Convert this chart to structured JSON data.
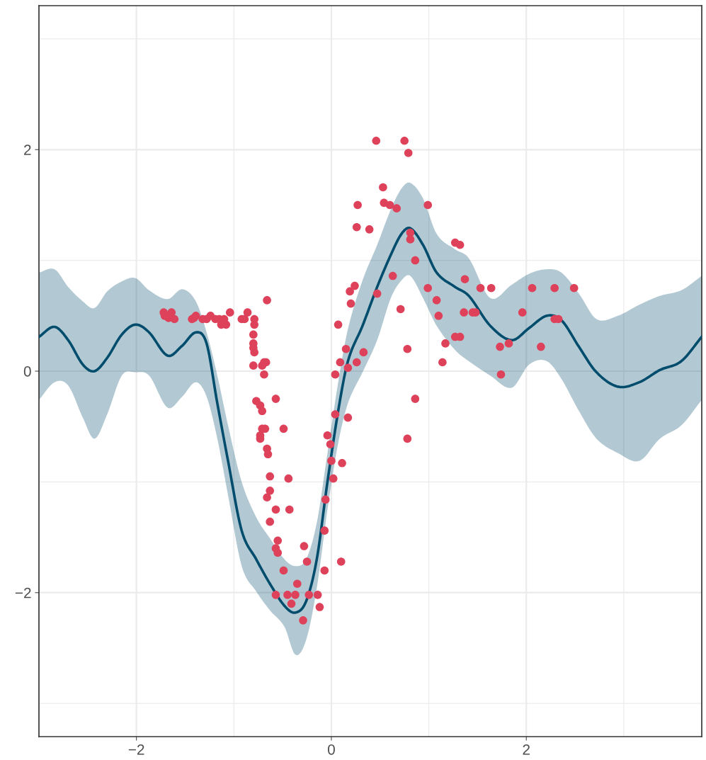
{
  "chart_data": {
    "type": "scatter",
    "xlim": [
      -3.0,
      3.8
    ],
    "ylim": [
      -3.3,
      3.3
    ],
    "xticks": [
      {
        "value": -2,
        "label": "−2"
      },
      0,
      2
    ],
    "yticks": [
      {
        "value": -2,
        "label": "−2"
      },
      0,
      2
    ],
    "grid": true,
    "series": [
      {
        "type": "line",
        "color": "#004c6d",
        "lower": [
          -0.26,
          -0.1,
          -0.13,
          -0.42,
          -0.61,
          -0.39,
          -0.04,
          -0.01,
          -0.04,
          -0.33,
          -0.23,
          -0.1,
          -0.23,
          -0.61,
          -1.12,
          -1.76,
          -1.99,
          -2.16,
          -2.31,
          -2.56,
          -2.43,
          -1.96,
          -1.25,
          -0.65,
          -0.29,
          -0.01,
          0.28,
          0.66,
          0.82,
          0.86,
          0.66,
          0.41,
          0.19,
          0.09,
          -0.04,
          -0.15,
          0.06,
          0.09,
          -0.07,
          -0.36,
          -0.61,
          -0.74,
          -0.81,
          -0.61,
          -0.49,
          -0.26
        ],
        "upper": [
          0.89,
          0.92,
          0.76,
          0.63,
          0.57,
          0.72,
          0.81,
          0.84,
          0.73,
          0.65,
          0.74,
          0.63,
          0.35,
          -0.04,
          -0.49,
          -1.0,
          -1.32,
          -1.51,
          -1.7,
          -1.76,
          -1.7,
          -1.37,
          -0.74,
          -0.1,
          0.38,
          0.82,
          1.14,
          1.46,
          1.65,
          1.7,
          1.56,
          1.24,
          1.1,
          1.02,
          0.66,
          0.78,
          0.88,
          0.92,
          0.89,
          0.7,
          0.47,
          0.5,
          0.6,
          0.68,
          0.73,
          0.86
        ],
        "x": [
          -3.0,
          -2.84,
          -2.7,
          -2.55,
          -2.43,
          -2.3,
          -2.15,
          -2.01,
          -1.87,
          -1.68,
          -1.53,
          -1.39,
          -1.28,
          -1.17,
          -1.06,
          -0.92,
          -0.77,
          -0.63,
          -0.48,
          -0.37,
          -0.26,
          -0.15,
          -0.04,
          0.07,
          0.17,
          0.32,
          0.47,
          0.61,
          0.72,
          0.81,
          0.94,
          1.08,
          1.27,
          1.41,
          1.63,
          1.85,
          2.03,
          2.21,
          2.36,
          2.54,
          2.72,
          2.94,
          3.16,
          3.37,
          3.59,
          3.8
        ],
        "values": [
          0.31,
          0.4,
          0.28,
          0.06,
          0.0,
          0.12,
          0.33,
          0.42,
          0.35,
          0.14,
          0.23,
          0.35,
          0.25,
          -0.29,
          -0.81,
          -1.44,
          -1.7,
          -1.92,
          -2.12,
          -2.18,
          -2.08,
          -1.7,
          -1.0,
          -0.36,
          0.09,
          0.41,
          0.76,
          1.05,
          1.24,
          1.29,
          1.14,
          0.89,
          0.76,
          0.68,
          0.41,
          0.28,
          0.39,
          0.5,
          0.46,
          0.22,
          -0.01,
          -0.14,
          -0.1,
          0.01,
          0.09,
          0.31
        ]
      },
      {
        "color": "#de425b",
        "marker": "circle",
        "x": [
          -1.72,
          -1.71,
          -1.67,
          -1.64,
          -1.61,
          -1.43,
          -1.41,
          -1.39,
          -1.32,
          -1.28,
          -1.24,
          -1.19,
          -1.15,
          -1.13,
          -1.1,
          -1.08,
          -1.04,
          -0.92,
          -0.89,
          -0.86,
          -0.79,
          -0.79,
          -0.8,
          -0.8,
          -0.8,
          -0.79,
          -0.8,
          -0.71,
          -0.69,
          -0.67,
          -0.66,
          -0.69,
          -0.77,
          -0.73,
          -0.71,
          -0.73,
          -0.73,
          -0.71,
          -0.68,
          -0.66,
          -0.65,
          -0.49,
          -0.63,
          -0.63,
          -0.66,
          -0.57,
          -0.63,
          -0.57,
          -0.44,
          -0.43,
          -0.55,
          -0.55,
          -0.57,
          -0.49,
          -0.57,
          -0.45,
          -0.41,
          -0.37,
          -0.35,
          -0.28,
          -0.29,
          -0.25,
          -0.23,
          -0.14,
          -0.12,
          -0.07,
          -0.07,
          -0.06,
          -0.04,
          -0.01,
          0.0,
          0.02,
          0.04,
          0.04,
          0.07,
          0.09,
          0.1,
          0.11,
          0.15,
          0.17,
          0.17,
          0.19,
          0.2,
          0.24,
          0.26,
          0.26,
          0.27,
          0.33,
          0.39,
          0.46,
          0.47,
          0.53,
          0.54,
          0.6,
          0.63,
          0.67,
          0.71,
          0.75,
          0.78,
          0.79,
          0.78,
          0.81,
          0.81,
          0.86,
          0.86,
          0.99,
          0.99,
          1.08,
          1.1,
          1.17,
          1.14,
          1.27,
          1.27,
          1.32,
          1.36,
          1.37,
          1.32,
          1.45,
          1.48,
          1.53,
          1.64,
          1.73,
          1.74,
          1.82,
          1.96,
          2.06,
          2.15,
          2.29,
          2.29,
          2.33,
          2.49
        ],
        "values": [
          0.53,
          0.5,
          0.48,
          0.53,
          0.47,
          0.47,
          0.48,
          0.5,
          0.47,
          0.47,
          0.5,
          0.47,
          0.47,
          0.42,
          0.47,
          0.42,
          0.53,
          0.47,
          0.47,
          0.53,
          0.47,
          0.42,
          0.33,
          0.25,
          0.21,
          0.17,
          0.05,
          0.05,
          0.08,
          0.08,
          0.64,
          -0.03,
          -0.27,
          -0.31,
          -0.36,
          -0.58,
          -0.61,
          -0.52,
          -0.52,
          -0.7,
          -0.75,
          -0.52,
          -0.95,
          -1.08,
          -1.14,
          -0.25,
          -1.36,
          -1.25,
          -0.97,
          -1.25,
          -1.53,
          -1.64,
          -1.6,
          -1.8,
          -2.02,
          -2.02,
          -2.1,
          -2.02,
          -1.92,
          -1.58,
          -2.25,
          -1.72,
          -2.02,
          -2.02,
          -2.13,
          -1.8,
          -1.44,
          -1.16,
          -0.58,
          -0.66,
          -0.81,
          -0.97,
          -0.39,
          -0.03,
          0.42,
          0.08,
          -1.72,
          -0.83,
          0.2,
          0.03,
          -0.42,
          0.72,
          0.61,
          0.77,
          0.08,
          1.3,
          1.5,
          0.17,
          1.28,
          2.08,
          0.7,
          1.66,
          1.52,
          1.5,
          0.86,
          1.47,
          0.56,
          2.08,
          0.2,
          1.97,
          -0.61,
          1.25,
          1.19,
          1.0,
          -0.25,
          1.5,
          0.75,
          0.64,
          0.5,
          0.25,
          0.08,
          1.16,
          0.31,
          1.14,
          0.53,
          0.83,
          0.31,
          0.53,
          0.53,
          0.75,
          0.75,
          0.22,
          -0.03,
          0.25,
          0.53,
          0.75,
          0.22,
          0.75,
          0.47,
          0.47,
          0.75
        ]
      }
    ]
  }
}
